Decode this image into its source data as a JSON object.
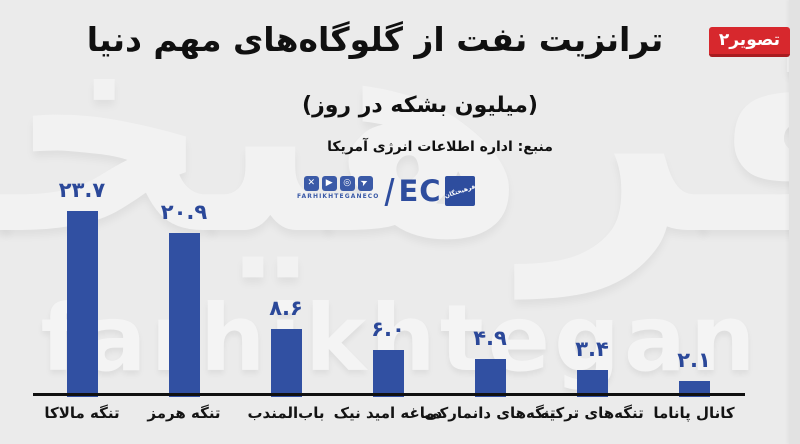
{
  "badge": {
    "label": "تصویر۲",
    "bg": "#d7282d"
  },
  "header": {
    "title": "ترانزیت نفت از گلوگاه‌های مهم دنیا",
    "subtitle": "(میلیون بشکه در روز)",
    "source": "منبع: اداره اطلاعات انرژی آمریکا"
  },
  "watermark": {
    "persian": "فرهیختگان",
    "latin": "farhikhtegan"
  },
  "logo": {
    "icons": [
      "x-icon",
      "youtube-icon",
      "instagram-icon",
      "telegram-icon"
    ],
    "icon_glyphs": {
      "x": "✕",
      "youtube": "▶",
      "instagram": "◎",
      "telegram": "➤"
    },
    "caption": "FARHIKHTEGANECO",
    "brand": "EC",
    "mark_text": "فرهیختگان",
    "accent": "#2e4d9e"
  },
  "chart_data": {
    "type": "bar",
    "title": "ترانزیت نفت از گلوگاه‌های مهم دنیا",
    "unit": "(میلیون بشکه در روز)",
    "source": "منبع: اداره اطلاعات انرژی آمریکا",
    "categories": [
      "تنگه مالاکا",
      "تنگه هرمز",
      "باب‌المندب",
      "دماغه امید نیک",
      "تنگه‌های دانمارکی",
      "تنگه‌های ترکیه",
      "کانال پاناما"
    ],
    "values": [
      23.7,
      20.9,
      8.6,
      6.0,
      4.9,
      3.4,
      2.1
    ],
    "value_labels": [
      "۲۳.۷",
      "۲۰.۹",
      "۸.۶",
      "۶.۰",
      "۴.۹",
      "۳.۴",
      "۲.۱"
    ],
    "bar_color": "#3150a2",
    "value_label_color": "#2b4899",
    "ylim": [
      0,
      25
    ],
    "grid": false,
    "legend": false
  }
}
